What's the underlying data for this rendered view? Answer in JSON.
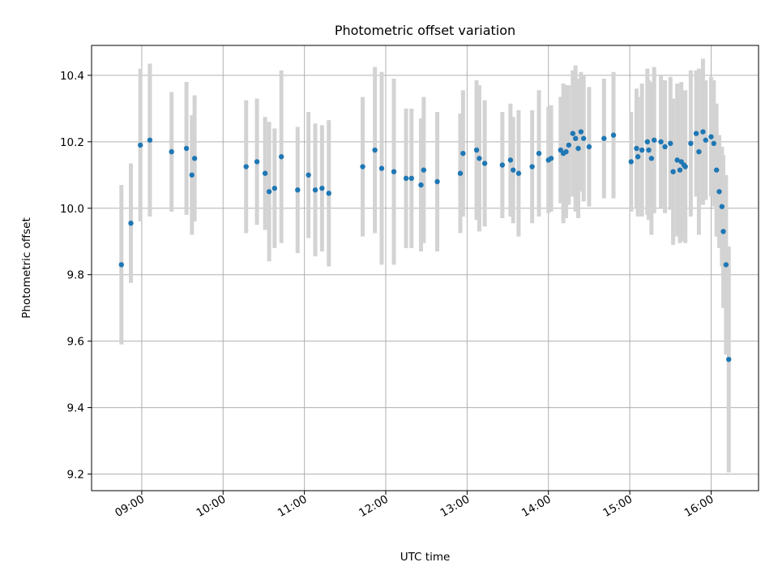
{
  "chart_data": {
    "type": "scatter",
    "title": "Photometric offset variation",
    "xlabel": "UTC time",
    "ylabel": "Photometric offset",
    "xlim": [
      "08:23",
      "16:35"
    ],
    "ylim": [
      9.15,
      10.49
    ],
    "xticks": [
      "09:00",
      "10:00",
      "11:00",
      "12:00",
      "13:00",
      "14:00",
      "15:00",
      "16:00"
    ],
    "yticks": [
      "9.2",
      "9.4",
      "9.6",
      "9.8",
      "10.0",
      "10.2",
      "10.4"
    ],
    "grid": true,
    "legend": "none",
    "colors": {
      "marker": "#1f77b4",
      "errorbar": "#d3d3d3",
      "grid": "#b0b0b0"
    },
    "series": [
      {
        "x": [
          "08:45",
          "08:52",
          "08:59",
          "09:06",
          "09:22",
          "09:33",
          "09:37",
          "09:39",
          "10:17",
          "10:25",
          "10:31",
          "10:34",
          "10:38",
          "10:43",
          "10:55",
          "11:03",
          "11:08",
          "11:13",
          "11:18",
          "11:43",
          "11:52",
          "11:57",
          "12:06",
          "12:15",
          "12:19",
          "12:26",
          "12:28",
          "12:38",
          "12:55",
          "12:57",
          "13:07",
          "13:09",
          "13:13",
          "13:26",
          "13:32",
          "13:34",
          "13:38",
          "13:48",
          "13:53",
          "14:00",
          "14:02",
          "14:09",
          "14:11",
          "14:13",
          "14:15",
          "14:18",
          "14:20",
          "14:22",
          "14:24",
          "14:26",
          "14:30",
          "14:41",
          "14:48",
          "15:01",
          "15:05",
          "15:06",
          "15:09",
          "15:13",
          "15:14",
          "15:16",
          "15:18",
          "15:23",
          "15:26",
          "15:30",
          "15:32",
          "15:35",
          "15:37",
          "15:38",
          "15:40",
          "15:41",
          "15:45",
          "15:49",
          "15:51",
          "15:54",
          "15:56",
          "16:00",
          "16:02",
          "16:04",
          "16:06",
          "16:08",
          "16:09",
          "16:11",
          "16:13"
        ],
        "y": [
          9.83,
          9.955,
          10.19,
          10.205,
          10.17,
          10.18,
          10.1,
          10.15,
          10.125,
          10.14,
          10.105,
          10.05,
          10.06,
          10.155,
          10.055,
          10.1,
          10.055,
          10.06,
          10.045,
          10.125,
          10.175,
          10.12,
          10.11,
          10.09,
          10.09,
          10.07,
          10.115,
          10.08,
          10.105,
          10.165,
          10.175,
          10.15,
          10.135,
          10.13,
          10.145,
          10.115,
          10.105,
          10.125,
          10.165,
          10.145,
          10.15,
          10.175,
          10.165,
          10.17,
          10.19,
          10.225,
          10.21,
          10.18,
          10.23,
          10.21,
          10.185,
          10.21,
          10.22,
          10.14,
          10.18,
          10.155,
          10.175,
          10.2,
          10.175,
          10.15,
          10.205,
          10.2,
          10.185,
          10.195,
          10.11,
          10.145,
          10.115,
          10.14,
          10.13,
          10.125,
          10.195,
          10.225,
          10.17,
          10.23,
          10.205,
          10.215,
          10.195,
          10.115,
          10.05,
          10.005,
          9.93,
          9.83,
          9.545
        ],
        "yerr": [
          0.24,
          0.18,
          0.23,
          0.23,
          0.18,
          0.2,
          0.18,
          0.19,
          0.2,
          0.19,
          0.17,
          0.21,
          0.18,
          0.26,
          0.19,
          0.19,
          0.2,
          0.19,
          0.22,
          0.21,
          0.25,
          0.29,
          0.28,
          0.21,
          0.21,
          0.2,
          0.22,
          0.21,
          0.18,
          0.19,
          0.21,
          0.22,
          0.19,
          0.16,
          0.17,
          0.16,
          0.19,
          0.17,
          0.19,
          0.16,
          0.16,
          0.16,
          0.21,
          0.2,
          0.18,
          0.19,
          0.22,
          0.21,
          0.18,
          0.19,
          0.18,
          0.18,
          0.19,
          0.15,
          0.18,
          0.18,
          0.2,
          0.22,
          0.21,
          0.23,
          0.22,
          0.2,
          0.2,
          0.2,
          0.22,
          0.23,
          0.22,
          0.24,
          0.22,
          0.23,
          0.22,
          0.19,
          0.25,
          0.22,
          0.18,
          0.18,
          0.19,
          0.2,
          0.17,
          0.18,
          0.23,
          0.27,
          0.34
        ]
      }
    ]
  }
}
